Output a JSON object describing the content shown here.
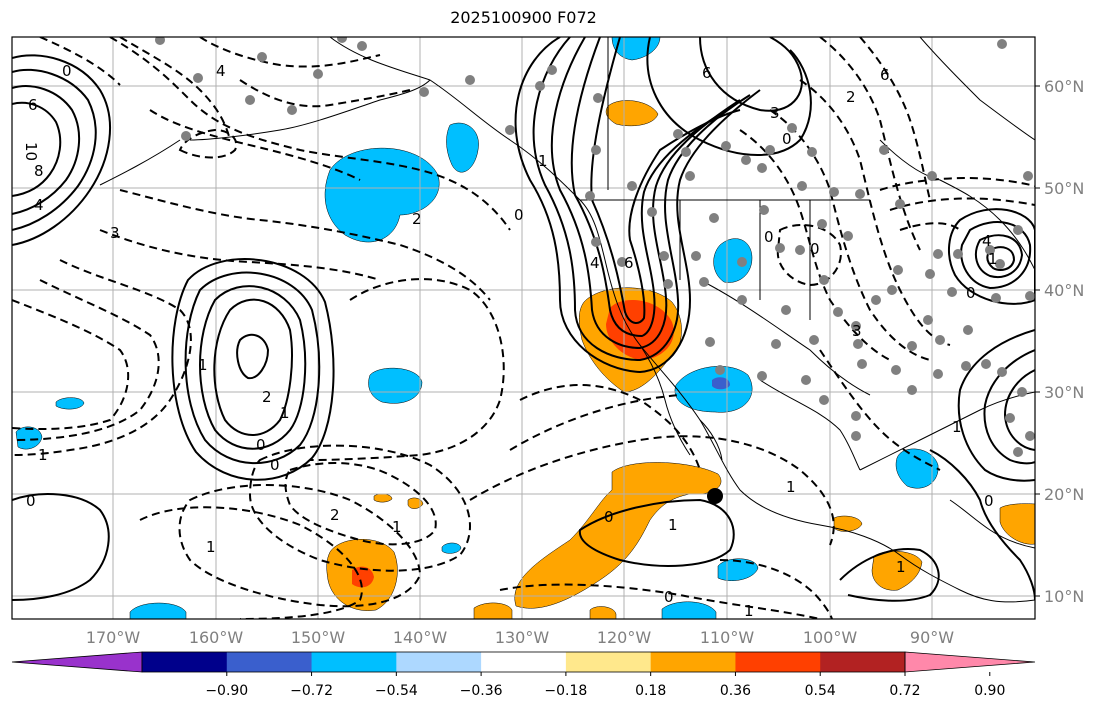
{
  "title": "2025100900 F072",
  "lat_labels": [
    "60°N",
    "50°N",
    "40°N",
    "30°N",
    "20°N",
    "10°N"
  ],
  "lon_labels": [
    "170°W",
    "160°W",
    "150°W",
    "140°W",
    "130°W",
    "120°W",
    "110°W",
    "100°W",
    "90°W"
  ],
  "colorbar": {
    "colors": [
      "#9932cc",
      "#00008b",
      "#3a5fcd",
      "#00bfff",
      "#add8ff",
      "#ffffff",
      "#ffe88c",
      "#ffa500",
      "#ff4000",
      "#b22222",
      "#ff88aa"
    ],
    "ticks": [
      "−0.90",
      "−0.72",
      "−0.54",
      "−0.36",
      "−0.18",
      "0.18",
      "0.36",
      "0.54",
      "0.72",
      "0.90"
    ]
  },
  "contour_labels": [
    "0",
    "6",
    "10",
    "8",
    "4",
    "3",
    "4",
    "2",
    "0",
    "6",
    "1",
    "6",
    "4",
    "3",
    "0",
    "2",
    "0",
    "0",
    "6",
    "1",
    "4",
    "0",
    "3",
    "2",
    "1",
    "0",
    "0",
    "1",
    "2",
    "1",
    "1",
    "0",
    "1",
    "1",
    "0",
    "1",
    "1",
    "1",
    "1",
    "0",
    "0"
  ]
}
